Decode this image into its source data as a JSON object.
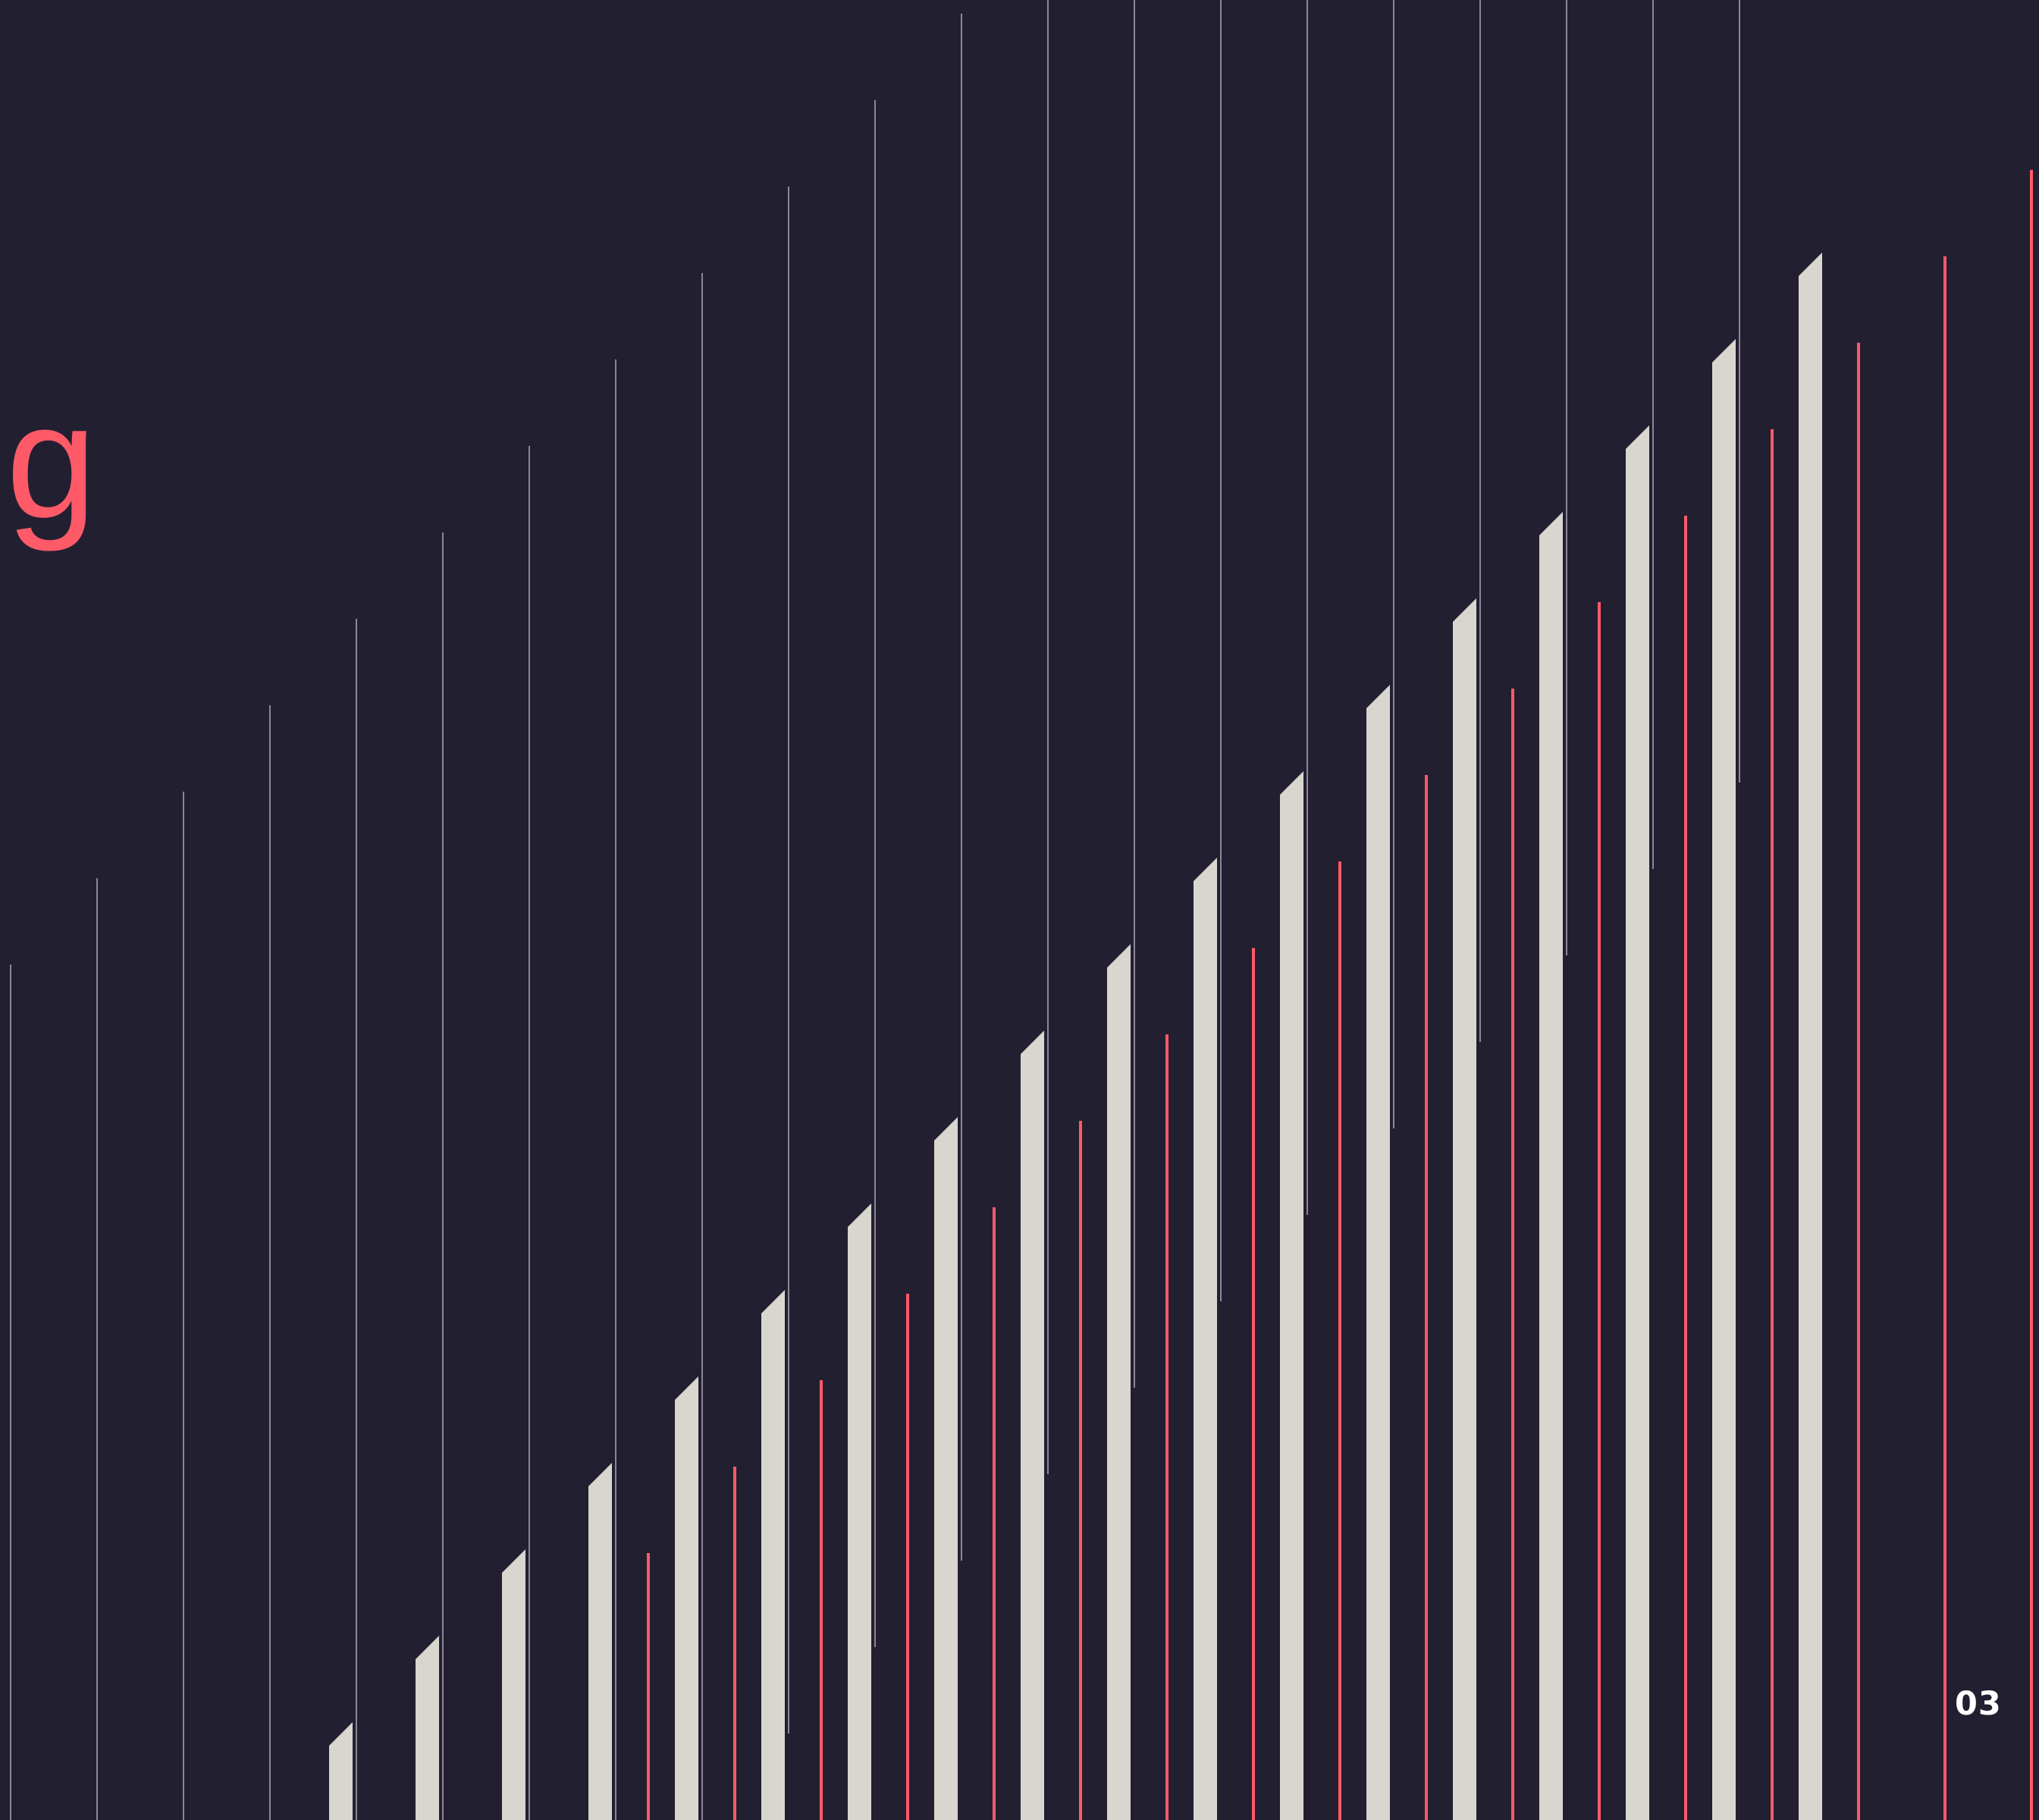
{
  "title_fragment": "g",
  "page_number": "03",
  "colors": {
    "background": "#221f31",
    "accent": "#ff5a68",
    "light_bars": "#d9d6cf",
    "guide_lines": "#8b879a"
  },
  "decorative_pattern": {
    "thin_guide_line_count": 21,
    "light_bar_count": 18,
    "accent_line_count": 17
  }
}
